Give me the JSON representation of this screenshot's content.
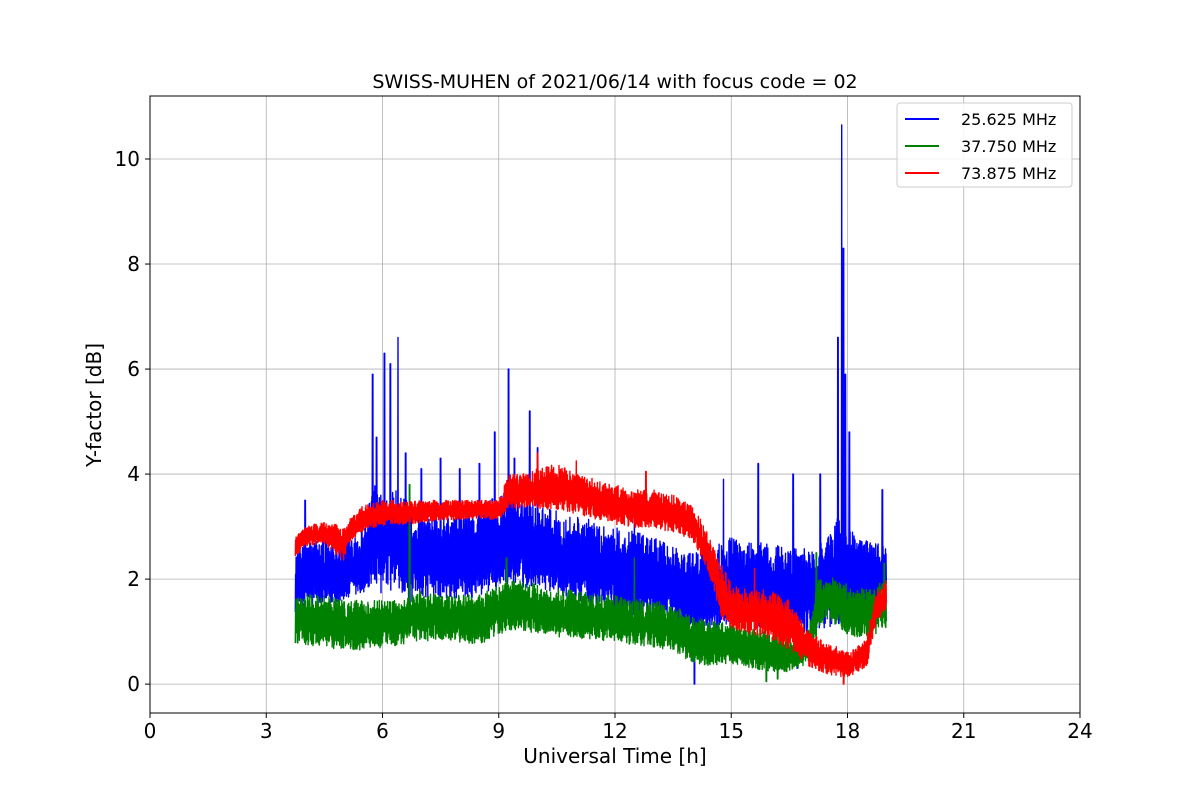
{
  "chart_data": {
    "type": "line",
    "title": "SWISS-MUHEN of 2021/06/14 with focus code = 02",
    "xlabel": "Universal Time [h]",
    "ylabel": "Y-factor [dB]",
    "xlim": [
      0,
      24
    ],
    "ylim": [
      -0.55,
      11.2
    ],
    "xticks": [
      0,
      3,
      6,
      9,
      12,
      15,
      18,
      21,
      24
    ],
    "yticks": [
      0,
      2,
      4,
      6,
      8,
      10
    ],
    "grid": true,
    "legend_position": "top-right",
    "series": [
      {
        "name": "25.625 MHz",
        "color": "#0000ff",
        "envelope": {
          "x": [
            3.75,
            4.0,
            4.5,
            5.0,
            5.5,
            5.75,
            6.0,
            6.25,
            6.5,
            6.75,
            7.0,
            7.5,
            8.0,
            8.5,
            9.0,
            9.25,
            9.5,
            10.0,
            10.5,
            11.0,
            11.5,
            12.0,
            12.5,
            13.0,
            13.5,
            14.0,
            14.5,
            15.0,
            15.5,
            16.0,
            16.5,
            17.0,
            17.5,
            17.75,
            18.0,
            18.25,
            18.5,
            19.0
          ],
          "low": [
            1.3,
            1.4,
            1.4,
            1.5,
            1.6,
            1.7,
            1.6,
            1.7,
            1.5,
            1.4,
            1.6,
            1.5,
            1.5,
            1.6,
            1.7,
            1.8,
            1.7,
            1.8,
            1.6,
            1.5,
            1.4,
            1.3,
            1.2,
            1.2,
            1.1,
            0.8,
            0.9,
            1.1,
            1.0,
            0.9,
            0.8,
            0.9,
            1.0,
            1.0,
            1.0,
            1.0,
            1.1,
            1.5
          ],
          "high": [
            2.6,
            2.7,
            2.8,
            2.8,
            3.0,
            3.8,
            3.7,
            3.8,
            3.6,
            3.4,
            3.2,
            3.2,
            3.3,
            3.4,
            3.6,
            3.8,
            3.7,
            3.4,
            3.3,
            3.2,
            3.1,
            3.0,
            2.9,
            2.8,
            2.6,
            2.5,
            2.6,
            2.8,
            2.7,
            2.7,
            2.6,
            2.6,
            2.8,
            3.2,
            3.0,
            2.8,
            2.8,
            2.6
          ]
        },
        "peaks": [
          [
            4.0,
            3.5
          ],
          [
            5.75,
            5.9
          ],
          [
            5.85,
            4.7
          ],
          [
            6.05,
            6.3
          ],
          [
            6.2,
            6.1
          ],
          [
            6.4,
            6.6
          ],
          [
            6.6,
            4.4
          ],
          [
            7.0,
            4.1
          ],
          [
            7.5,
            4.3
          ],
          [
            8.0,
            4.1
          ],
          [
            8.5,
            4.2
          ],
          [
            8.9,
            4.8
          ],
          [
            9.25,
            6.0
          ],
          [
            9.4,
            4.3
          ],
          [
            9.8,
            5.2
          ],
          [
            10.0,
            4.5
          ],
          [
            12.5,
            3.4
          ],
          [
            14.8,
            3.9
          ],
          [
            15.7,
            4.2
          ],
          [
            16.6,
            4.0
          ],
          [
            17.3,
            4.0
          ],
          [
            17.75,
            6.6
          ],
          [
            17.85,
            10.65
          ],
          [
            17.9,
            8.3
          ],
          [
            17.95,
            5.9
          ],
          [
            18.05,
            4.8
          ],
          [
            18.9,
            3.7
          ]
        ],
        "dips": [
          [
            14.05,
            0.0
          ],
          [
            16.7,
            0.3
          ]
        ]
      },
      {
        "name": "37.750 MHz",
        "color": "#008000",
        "envelope": {
          "x": [
            3.75,
            4.0,
            4.5,
            5.0,
            5.5,
            6.0,
            6.5,
            6.75,
            7.0,
            7.5,
            8.0,
            8.5,
            9.0,
            9.5,
            10.0,
            10.5,
            11.0,
            11.5,
            12.0,
            12.5,
            13.0,
            13.5,
            14.0,
            14.5,
            15.0,
            15.5,
            16.0,
            16.5,
            17.0,
            17.25,
            17.5,
            18.0,
            18.5,
            19.0
          ],
          "low": [
            0.7,
            0.7,
            0.65,
            0.6,
            0.6,
            0.65,
            0.7,
            0.8,
            0.75,
            0.8,
            0.75,
            0.7,
            0.9,
            1.0,
            0.9,
            0.85,
            0.8,
            0.8,
            0.75,
            0.7,
            0.65,
            0.6,
            0.35,
            0.3,
            0.35,
            0.25,
            0.2,
            0.2,
            0.35,
            1.0,
            1.2,
            0.9,
            0.8,
            1.0
          ],
          "high": [
            1.7,
            1.8,
            1.7,
            1.6,
            1.6,
            1.6,
            1.6,
            1.7,
            1.8,
            1.7,
            1.7,
            1.7,
            1.9,
            2.0,
            1.9,
            1.8,
            1.8,
            1.7,
            1.7,
            1.6,
            1.6,
            1.5,
            1.3,
            1.2,
            1.2,
            1.1,
            1.0,
            0.9,
            1.1,
            2.0,
            2.1,
            1.9,
            1.8,
            2.0
          ]
        },
        "peaks": [
          [
            6.7,
            3.8
          ],
          [
            9.2,
            2.4
          ],
          [
            12.5,
            2.4
          ],
          [
            17.2,
            2.5
          ],
          [
            18.95,
            2.3
          ]
        ],
        "dips": [
          [
            15.9,
            0.05
          ],
          [
            16.2,
            0.1
          ]
        ]
      },
      {
        "name": "73.875 MHz",
        "color": "#ff0000",
        "envelope": {
          "x": [
            3.75,
            4.0,
            4.5,
            5.0,
            5.1,
            5.5,
            6.0,
            6.5,
            7.0,
            7.5,
            8.0,
            8.5,
            9.0,
            9.25,
            9.5,
            10.0,
            10.5,
            11.0,
            11.5,
            12.0,
            12.5,
            13.0,
            13.5,
            14.0,
            14.25,
            14.5,
            14.75,
            15.0,
            15.5,
            16.0,
            16.5,
            17.0,
            17.5,
            18.0,
            18.5,
            18.75,
            19.0
          ],
          "low": [
            2.4,
            2.6,
            2.65,
            2.3,
            2.6,
            2.9,
            3.0,
            3.0,
            3.05,
            3.1,
            3.1,
            3.15,
            3.1,
            3.3,
            3.3,
            3.3,
            3.25,
            3.2,
            3.1,
            3.0,
            2.95,
            2.9,
            2.85,
            2.7,
            2.3,
            1.9,
            1.2,
            1.0,
            0.9,
            0.8,
            0.6,
            0.3,
            0.15,
            0.1,
            0.3,
            1.2,
            1.3
          ],
          "high": [
            2.8,
            3.0,
            3.1,
            3.0,
            3.1,
            3.4,
            3.5,
            3.5,
            3.5,
            3.5,
            3.5,
            3.5,
            3.5,
            4.0,
            4.0,
            4.1,
            4.2,
            4.0,
            3.9,
            3.8,
            3.7,
            3.7,
            3.6,
            3.4,
            3.1,
            2.7,
            2.3,
            1.9,
            1.8,
            1.8,
            1.6,
            1.0,
            0.8,
            0.6,
            0.9,
            1.8,
            2.0
          ]
        },
        "peaks": [
          [
            10.0,
            4.4
          ],
          [
            11.0,
            4.25
          ],
          [
            12.8,
            4.05
          ],
          [
            15.6,
            2.2
          ]
        ],
        "dips": [
          [
            17.9,
            0.0
          ]
        ]
      }
    ]
  }
}
